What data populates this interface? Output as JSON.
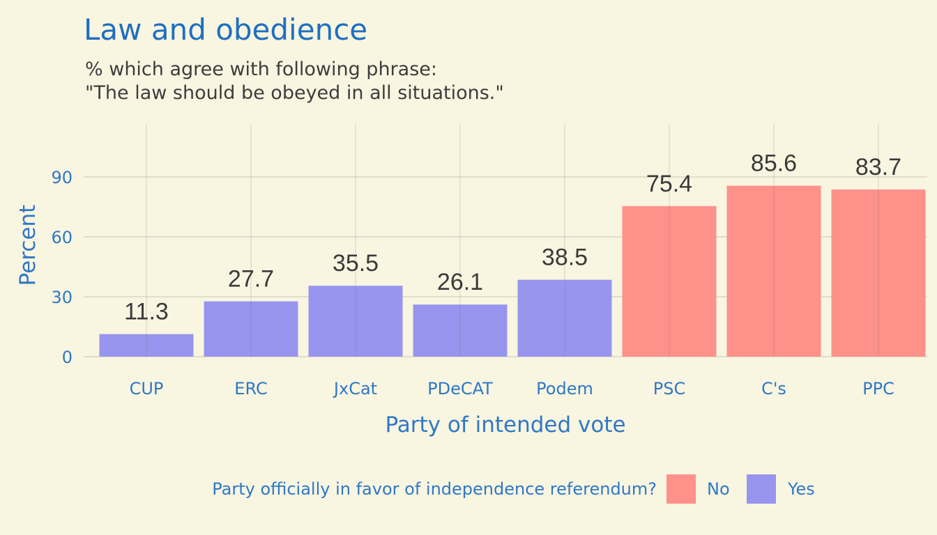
{
  "chart_data": {
    "type": "bar",
    "title": "Law and obedience",
    "subtitle": [
      "% which agree with following phrase:",
      "\"The law should be obeyed in all situations.\""
    ],
    "xlabel": "Party of intended vote",
    "ylabel": "Percent",
    "categories": [
      "CUP",
      "ERC",
      "JxCat",
      "PDeCAT",
      "Podem",
      "PSC",
      "C's",
      "PPC"
    ],
    "values": [
      11.3,
      27.7,
      35.5,
      26.1,
      38.5,
      75.4,
      85.6,
      83.7
    ],
    "value_labels": [
      "11.3",
      "27.7",
      "35.5",
      "26.1",
      "38.5",
      "75.4",
      "85.6",
      "83.7"
    ],
    "group": [
      "Yes",
      "Yes",
      "Yes",
      "Yes",
      "Yes",
      "No",
      "No",
      "No"
    ],
    "yticks": [
      0,
      30,
      60,
      90
    ],
    "ylim": [
      0,
      112
    ],
    "grid": true,
    "legend": {
      "title": "Party officially in favor of independence referendum?",
      "placement": "bottom",
      "items": [
        {
          "label": "No",
          "color": "#fe918a"
        },
        {
          "label": "Yes",
          "color": "#9895ee"
        }
      ]
    },
    "colors": {
      "Yes": "#9895ee",
      "No": "#fe918a",
      "title": "#1f6fc0",
      "axis_text": "#2f78c6",
      "value_label": "#3a3a3a",
      "background": "#f8f5e1",
      "grid": "#e0ddcc"
    }
  }
}
